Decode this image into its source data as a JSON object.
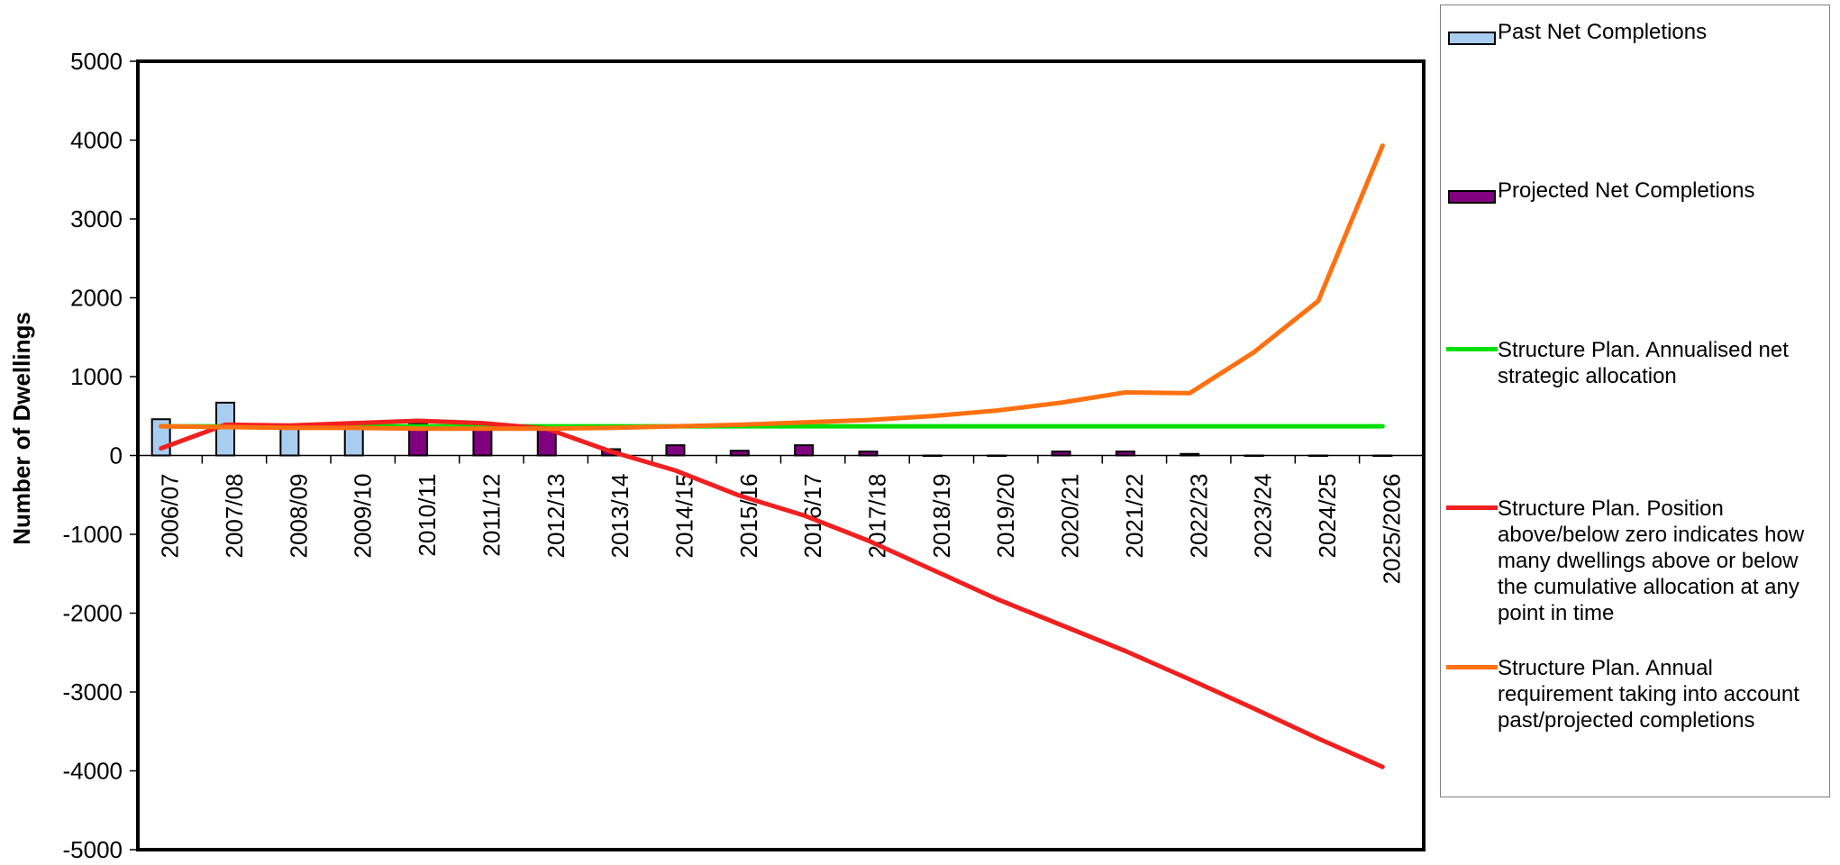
{
  "chart_data": {
    "type": "bar",
    "title": "",
    "xlabel": "",
    "ylabel": "Number of Dwellings",
    "ylim": [
      -5000,
      5000
    ],
    "yticks": [
      "5000",
      "4000",
      "3000",
      "2000",
      "1000",
      "0",
      "-1000",
      "-2000",
      "-3000",
      "-4000",
      "-5000"
    ],
    "categories": [
      "2006/07",
      "2007/08",
      "2008/09",
      "2009/10",
      "2010/11",
      "2011/12",
      "2012/13",
      "2013/14",
      "2014/15",
      "2015/16",
      "2016/17",
      "2017/18",
      "2018/19",
      "2019/20",
      "2020/21",
      "2021/22",
      "2022/23",
      "2023/24",
      "2024/25",
      "2025/2026"
    ],
    "bar_series": [
      {
        "name": "Past Net Completions",
        "color": "#a9cdf0",
        "values": [
          460,
          670,
          390,
          380,
          null,
          null,
          null,
          null,
          null,
          null,
          null,
          null,
          null,
          null,
          null,
          null,
          null,
          null,
          null,
          null
        ]
      },
      {
        "name": "Projected Net Completions",
        "color": "#800080",
        "values": [
          null,
          null,
          null,
          null,
          410,
          380,
          340,
          80,
          130,
          60,
          130,
          50,
          0,
          0,
          50,
          50,
          20,
          0,
          0,
          0
        ]
      }
    ],
    "line_series": [
      {
        "name": "Structure Plan. Annualised net strategic allocation",
        "color": "#00e000",
        "values": [
          370,
          370,
          370,
          370,
          370,
          370,
          370,
          370,
          370,
          370,
          370,
          370,
          370,
          370,
          370,
          370,
          370,
          370,
          370,
          370
        ]
      },
      {
        "name": "Structure Plan. Position above/below zero indicates how many dwellings above or below the cumulative allocation at any point in time",
        "color": "#f02020",
        "values": [
          90,
          390,
          380,
          410,
          440,
          410,
          340,
          50,
          -190,
          -510,
          -760,
          -1080,
          -1450,
          -1820,
          -2150,
          -2480,
          -2840,
          -3210,
          -3590,
          -3950
        ]
      },
      {
        "name": "Structure Plan. Annual requirement taking into account past/projected completions",
        "color": "#ff7010",
        "values": [
          370,
          360,
          350,
          350,
          340,
          340,
          340,
          350,
          370,
          390,
          420,
          450,
          500,
          570,
          670,
          800,
          790,
          1310,
          1960,
          3930
        ]
      }
    ],
    "grid": false,
    "legend_position": "right"
  }
}
